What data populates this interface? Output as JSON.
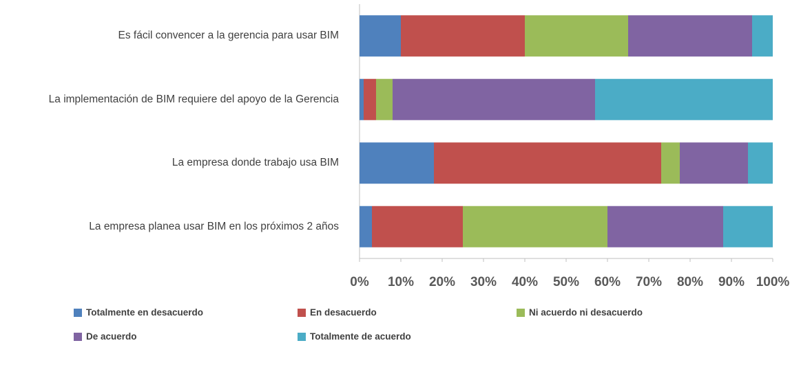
{
  "chart_data": {
    "type": "stacked-barh",
    "categories": [
      "Es fácil convencer a la gerencia para usar BIM",
      "La implementación de BIM requiere del apoyo de la Gerencia",
      "La empresa donde trabajo usa BIM",
      "La empresa planea usar BIM en los próximos 2 años"
    ],
    "series": [
      {
        "name": "Totalmente en desacuerdo",
        "color": "#4f81bd",
        "values": [
          10,
          1,
          18,
          3
        ]
      },
      {
        "name": "En desacuerdo",
        "color": "#c0504d",
        "values": [
          30,
          3,
          55,
          22
        ]
      },
      {
        "name": "Ni acuerdo ni desacuerdo",
        "color": "#9bbb59",
        "values": [
          25,
          4,
          4.5,
          35
        ]
      },
      {
        "name": "De acuerdo",
        "color": "#8064a2",
        "values": [
          30,
          49,
          16.5,
          28
        ]
      },
      {
        "name": "Totalmente de acuerdo",
        "color": "#4bacc6",
        "values": [
          5,
          43,
          6,
          12
        ]
      }
    ],
    "xlim": [
      0,
      100
    ],
    "xticks": [
      {
        "value": 0,
        "label": "0%"
      },
      {
        "value": 10,
        "label": "10%"
      },
      {
        "value": 20,
        "label": "20%"
      },
      {
        "value": 30,
        "label": "30%"
      },
      {
        "value": 40,
        "label": "40%"
      },
      {
        "value": 50,
        "label": "50%"
      },
      {
        "value": 60,
        "label": "60%"
      },
      {
        "value": 70,
        "label": "70%"
      },
      {
        "value": 80,
        "label": "80%"
      },
      {
        "value": 90,
        "label": "90%"
      },
      {
        "value": 100,
        "label": "100%"
      }
    ],
    "legend": "bottom"
  }
}
